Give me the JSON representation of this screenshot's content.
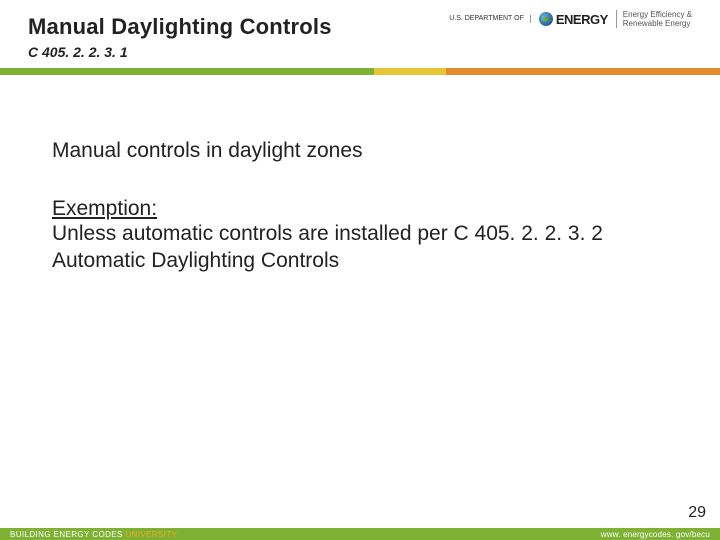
{
  "header": {
    "title": "Manual Daylighting Controls",
    "code": "C 405. 2. 2. 3. 1",
    "logo": {
      "dept_line1": "U.S. DEPARTMENT OF",
      "energy_word": "ENERGY",
      "eere_line1": "Energy Efficiency &",
      "eere_line2": "Renewable Energy"
    }
  },
  "bar_colors": {
    "green": "#7fb135",
    "yellow": "#e6c637",
    "orange": "#e48b2e"
  },
  "content": {
    "lead": "Manual controls in daylight zones",
    "exemption_label": "Exemption:",
    "exemption_text": "Unless automatic controls are installed per C 405. 2. 2. 3. 2 Automatic Daylighting Controls"
  },
  "footer": {
    "page_number": "29",
    "org_prefix": "BUILDING ENERGY CODES ",
    "org_suffix": "UNIVERSITY",
    "url": "www. energycodes. gov/becu"
  }
}
